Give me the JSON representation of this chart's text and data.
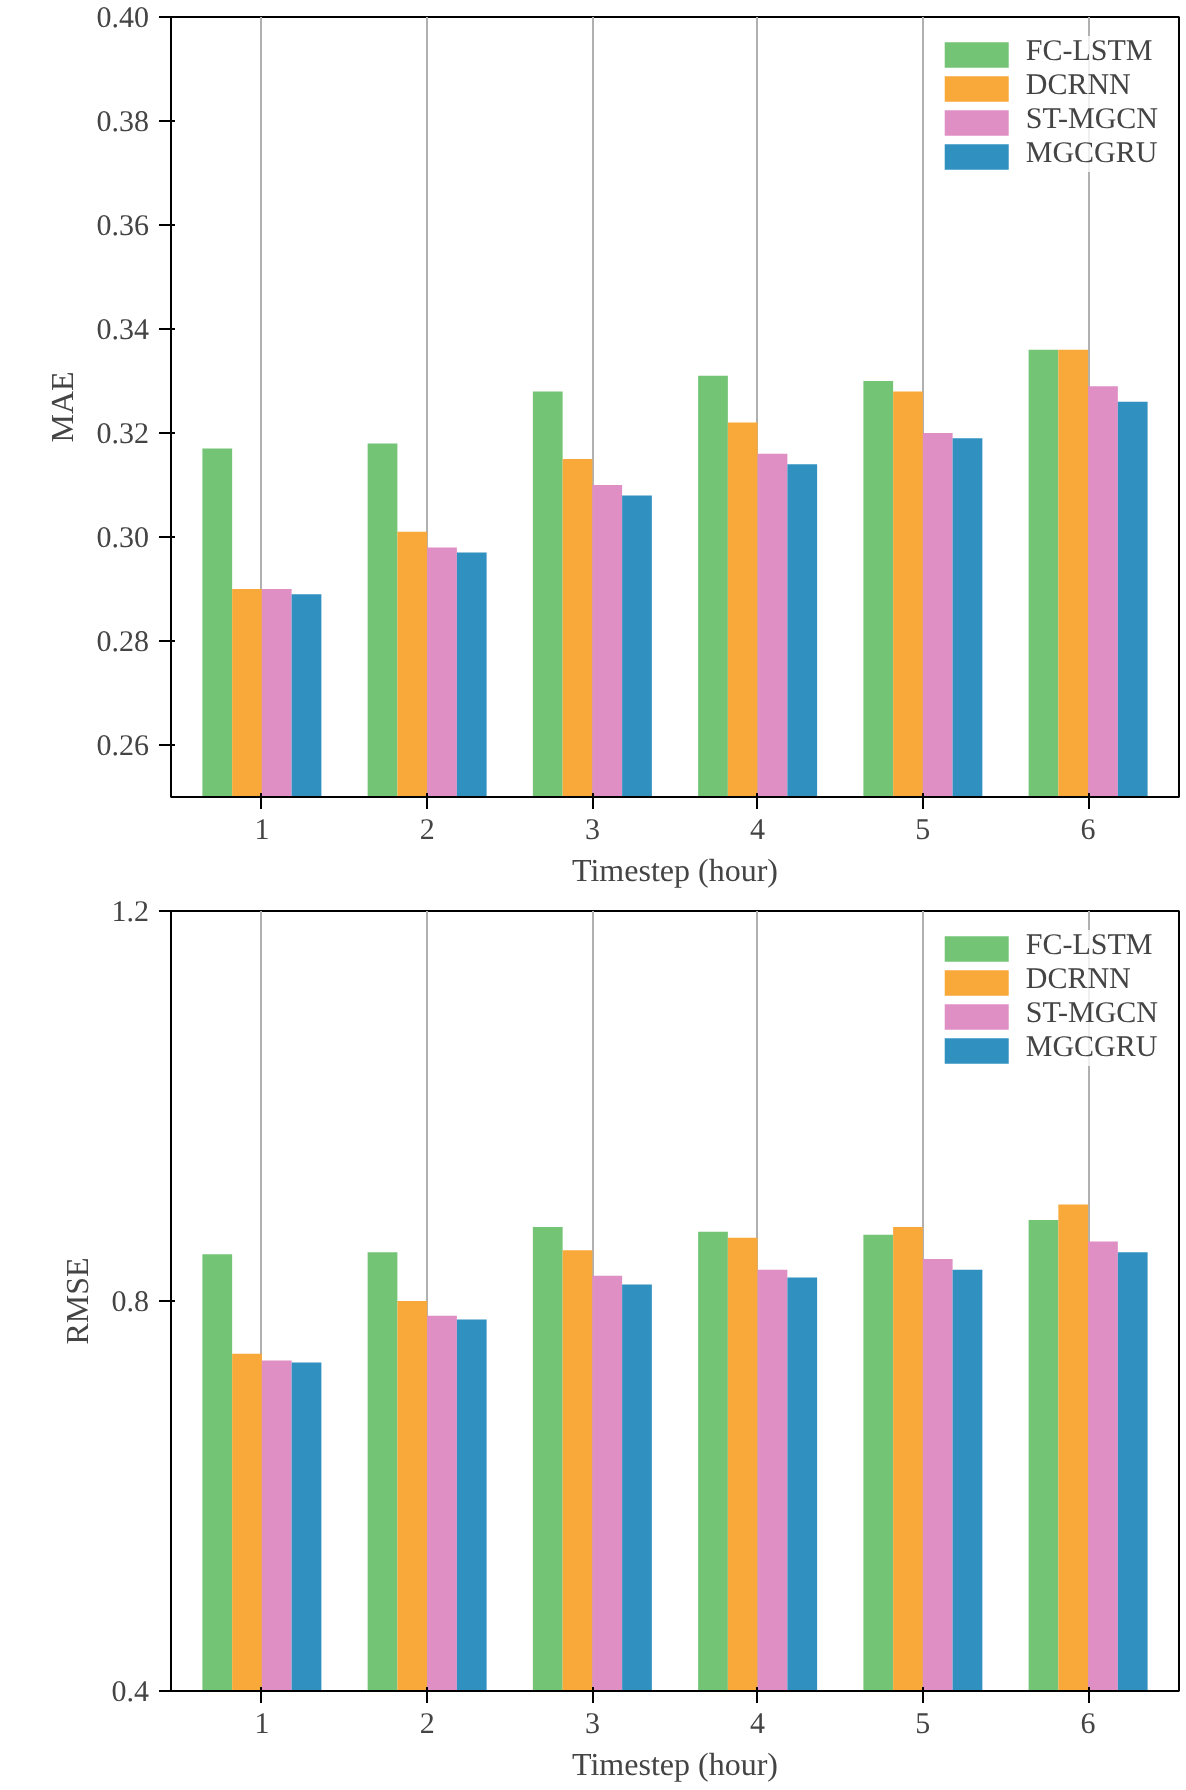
{
  "chart_data": [
    {
      "type": "bar",
      "xlabel": "Timestep (hour)",
      "ylabel": "MAE",
      "categories": [
        "1",
        "2",
        "3",
        "4",
        "5",
        "6"
      ],
      "series": [
        {
          "name": "FC-LSTM",
          "color": "#74c476",
          "values": [
            0.317,
            0.318,
            0.328,
            0.331,
            0.33,
            0.336
          ]
        },
        {
          "name": "DCRNN",
          "color": "#f9a93a",
          "values": [
            0.29,
            0.301,
            0.315,
            0.322,
            0.328,
            0.336
          ]
        },
        {
          "name": "ST-MGCN",
          "color": "#e08fc4",
          "values": [
            0.29,
            0.298,
            0.31,
            0.316,
            0.32,
            0.329
          ]
        },
        {
          "name": "MGCGRU",
          "color": "#3090c0",
          "values": [
            0.289,
            0.297,
            0.308,
            0.314,
            0.319,
            0.326
          ]
        }
      ],
      "ylim": [
        0.25,
        0.4
      ],
      "yticks": [
        {
          "value": 0.26,
          "label": "0.26"
        },
        {
          "value": 0.28,
          "label": "0.28"
        },
        {
          "value": 0.3,
          "label": "0.30"
        },
        {
          "value": 0.32,
          "label": "0.32"
        },
        {
          "value": 0.34,
          "label": "0.34"
        },
        {
          "value": 0.36,
          "label": "0.36"
        },
        {
          "value": 0.38,
          "label": "0.38"
        },
        {
          "value": 0.4,
          "label": "0.40"
        }
      ],
      "grid": "x",
      "legend": "top right"
    },
    {
      "type": "bar",
      "xlabel": "Timestep (hour)",
      "ylabel": "RMSE",
      "categories": [
        "1",
        "2",
        "3",
        "4",
        "5",
        "6"
      ],
      "series": [
        {
          "name": "FC-LSTM",
          "color": "#74c476",
          "values": [
            0.848,
            0.85,
            0.876,
            0.871,
            0.868,
            0.883
          ]
        },
        {
          "name": "DCRNN",
          "color": "#f9a93a",
          "values": [
            0.746,
            0.8,
            0.852,
            0.865,
            0.876,
            0.899
          ]
        },
        {
          "name": "ST-MGCN",
          "color": "#e08fc4",
          "values": [
            0.739,
            0.785,
            0.826,
            0.832,
            0.843,
            0.861
          ]
        },
        {
          "name": "MGCGRU",
          "color": "#3090c0",
          "values": [
            0.737,
            0.781,
            0.817,
            0.824,
            0.832,
            0.85
          ]
        }
      ],
      "ylim": [
        0.4,
        1.2
      ],
      "yticks": [
        0.4,
        0.8,
        1.2
      ],
      "grid": "x",
      "legend": "top right"
    }
  ]
}
